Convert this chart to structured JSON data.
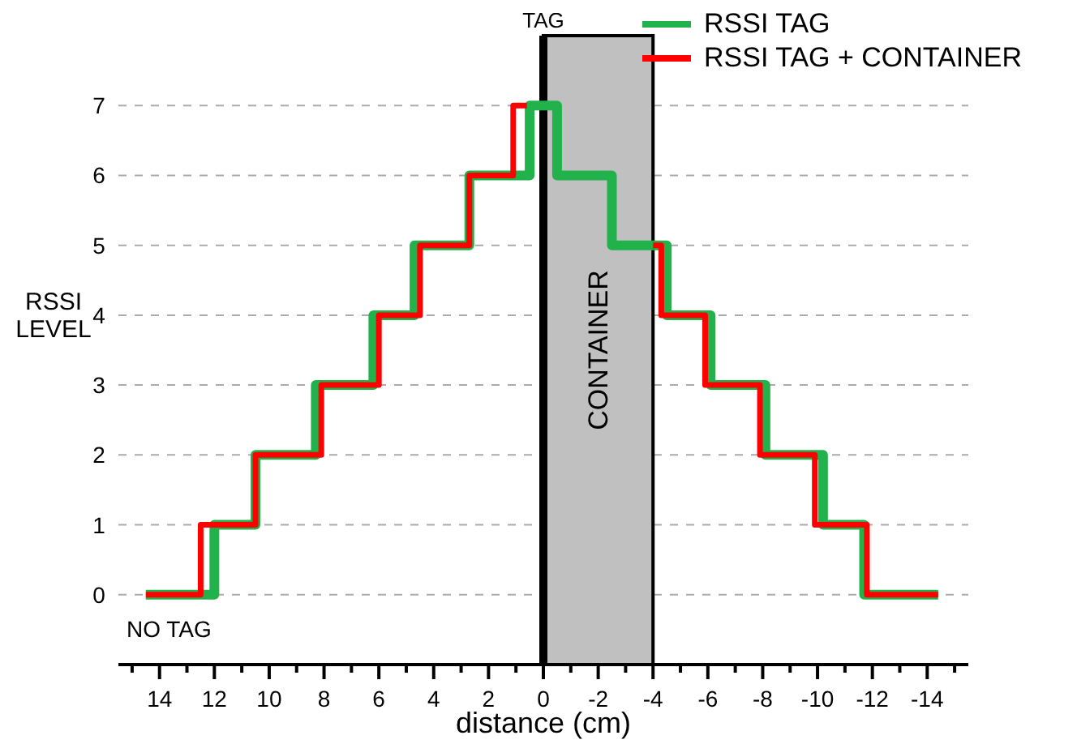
{
  "chart_data": {
    "type": "step",
    "xlabel": "distance (cm)",
    "ylabel": "RSSI LEVEL",
    "series": [
      {
        "name": "RSSI TAG",
        "color": "#22b24c",
        "x": [
          14.5,
          12,
          10.5,
          8.3,
          6.2,
          4.7,
          2.7,
          0.5,
          -0.5,
          -2.5,
          -4.5,
          -6.1,
          -8.1,
          -10.2,
          -11.7,
          -14.4
        ],
        "values": [
          0,
          1,
          2,
          3,
          4,
          5,
          6,
          7,
          6,
          5,
          4,
          3,
          2,
          1,
          0,
          0
        ]
      },
      {
        "name": "RSSI TAG + CONTAINER",
        "color": "#ff0000",
        "x": [
          14.5,
          12.5,
          10.5,
          8.1,
          6.0,
          4.5,
          2.7,
          1.1,
          0.6,
          -2,
          -4,
          -4.3,
          -5.9,
          -7.9,
          -9.9,
          -11.8,
          -14.4
        ],
        "values": [
          0,
          1,
          2,
          3,
          4,
          5,
          6,
          7,
          7,
          null,
          5,
          4,
          3,
          2,
          1,
          0,
          0
        ]
      }
    ],
    "xlim": [
      15.5,
      -15.5
    ],
    "xticks": [
      {
        "value": 15,
        "label": null
      },
      14,
      {
        "value": 13,
        "label": null
      },
      12,
      {
        "value": 11,
        "label": null
      },
      10,
      {
        "value": 9,
        "label": null
      },
      8,
      {
        "value": 7,
        "label": null
      },
      6,
      {
        "value": 5,
        "label": null
      },
      4,
      {
        "value": 3,
        "label": null
      },
      2,
      {
        "value": 1,
        "label": null
      },
      0,
      {
        "value": -1,
        "label": null
      },
      -2,
      {
        "value": -3,
        "label": null
      },
      -4,
      {
        "value": -5,
        "label": null
      },
      -6,
      {
        "value": -7,
        "label": null
      },
      -8,
      {
        "value": -9,
        "label": null
      },
      -10,
      {
        "value": -11,
        "label": null
      },
      -12,
      {
        "value": -13,
        "label": null
      },
      -14,
      {
        "value": -15,
        "label": null
      }
    ],
    "ylim": [
      -1,
      8
    ],
    "yticks": [
      0,
      1,
      2,
      3,
      4,
      5,
      6,
      7
    ],
    "ref_lines": [
      {
        "axis": "x",
        "value": 0,
        "label": "TAG",
        "color": "#000000"
      }
    ],
    "bands": [
      {
        "axis": "x",
        "from": 0,
        "to": -4,
        "label": "CONTAINER",
        "color": "#c0c0c0"
      }
    ],
    "annotations": [
      "NO TAG"
    ],
    "grid": "y",
    "legend": "top right",
    "line_style": "solid",
    "marker": "none"
  }
}
